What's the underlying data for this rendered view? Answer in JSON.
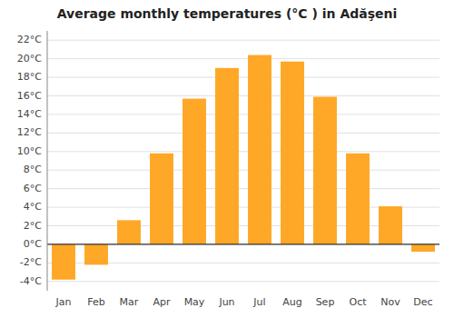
{
  "chart_data": {
    "type": "bar",
    "title": "Average monthly temperatures (°C ) in Adăşeni",
    "categories": [
      "Jan",
      "Feb",
      "Mar",
      "Apr",
      "May",
      "Jun",
      "Jul",
      "Aug",
      "Sep",
      "Oct",
      "Nov",
      "Dec"
    ],
    "values": [
      -3.8,
      -2.2,
      2.6,
      9.8,
      15.7,
      19.0,
      20.4,
      19.7,
      15.9,
      9.8,
      4.1,
      -0.8
    ],
    "color": "#FFA726",
    "ylim": [
      -5,
      23
    ],
    "yticks": [
      {
        "value": -4,
        "label": "-4°C"
      },
      {
        "value": -2,
        "label": "-2°C"
      },
      {
        "value": 0,
        "label": "0°C"
      },
      {
        "value": 2,
        "label": "2°C"
      },
      {
        "value": 4,
        "label": "4°C"
      },
      {
        "value": 6,
        "label": "6°C"
      },
      {
        "value": 8,
        "label": "8°C"
      },
      {
        "value": 10,
        "label": "10°C"
      },
      {
        "value": 12,
        "label": "12°C"
      },
      {
        "value": 14,
        "label": "14°C"
      },
      {
        "value": 16,
        "label": "16°C"
      },
      {
        "value": 18,
        "label": "18°C"
      },
      {
        "value": 20,
        "label": "20°C"
      },
      {
        "value": 22,
        "label": "22°C"
      }
    ],
    "grid": true
  }
}
